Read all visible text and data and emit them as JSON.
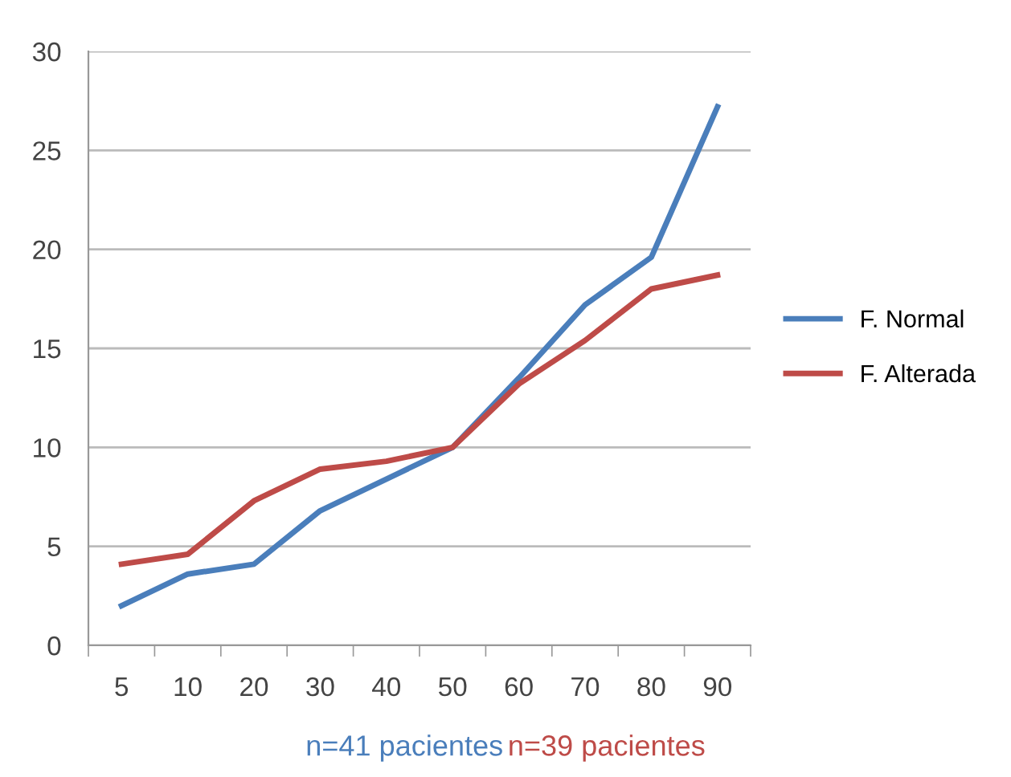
{
  "chart_data": {
    "type": "line",
    "categories": [
      "5",
      "10",
      "20",
      "30",
      "40",
      "50",
      "60",
      "70",
      "80",
      "90"
    ],
    "series": [
      {
        "name": "F. Normal",
        "color": "#4a7ebb",
        "values": [
          2.0,
          3.6,
          4.1,
          6.8,
          8.4,
          10.0,
          13.5,
          17.2,
          19.6,
          27.2
        ]
      },
      {
        "name": "F. Alterada",
        "color": "#be4b48",
        "values": [
          4.1,
          4.6,
          7.3,
          8.9,
          9.3,
          10.0,
          13.2,
          15.4,
          18.0,
          18.7
        ]
      }
    ],
    "ylim": [
      0,
      30
    ],
    "yticks": [
      0,
      5,
      10,
      15,
      20,
      25,
      30
    ],
    "grid": "y",
    "legend": "right",
    "marker": "none",
    "line_style": "solid",
    "annotations": [
      "n=41 pacientes",
      "n=39 pacientes"
    ]
  }
}
